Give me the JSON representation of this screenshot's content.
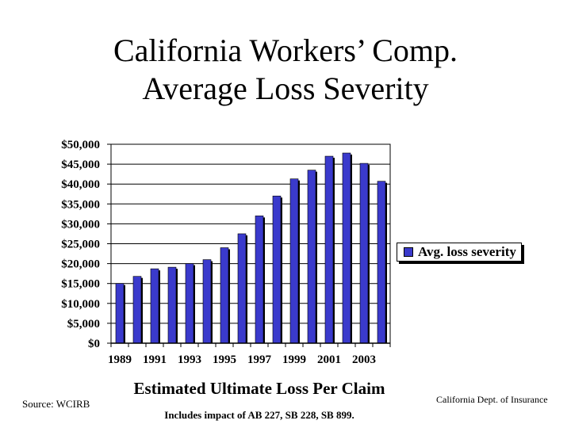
{
  "slide": {
    "title_line1": "California Workers’ Comp.",
    "title_line2": "Average Loss Severity",
    "source": "Source: WCIRB",
    "credit": "California Dept. of Insurance",
    "footnote": "Includes impact of AB 227, SB 228, SB 899."
  },
  "chart_data": {
    "type": "bar",
    "title": "",
    "xlabel": "Estimated Ultimate Loss Per Claim",
    "ylabel": "",
    "categories": [
      "1989",
      "1990",
      "1991",
      "1992",
      "1993",
      "1994",
      "1995",
      "1996",
      "1997",
      "1998",
      "1999",
      "2000",
      "2001",
      "2002",
      "2003",
      "2004"
    ],
    "x_tick_labels": [
      "1989",
      "1991",
      "1993",
      "1995",
      "1997",
      "1999",
      "2001",
      "2003"
    ],
    "y_tick_labels": [
      "$0",
      "$5,000",
      "$10,000",
      "$15,000",
      "$20,000",
      "$25,000",
      "$30,000",
      "$35,000",
      "$40,000",
      "$45,000",
      "$50,000"
    ],
    "ylim": [
      0,
      50000
    ],
    "grid": true,
    "legend_position": "right",
    "series": [
      {
        "name": "Avg. loss severity",
        "color": "#3a3acc",
        "values": [
          15000,
          16800,
          18700,
          19100,
          20000,
          21000,
          24000,
          27500,
          32000,
          37000,
          41300,
          43500,
          47000,
          47800,
          45200,
          40700
        ]
      }
    ]
  }
}
